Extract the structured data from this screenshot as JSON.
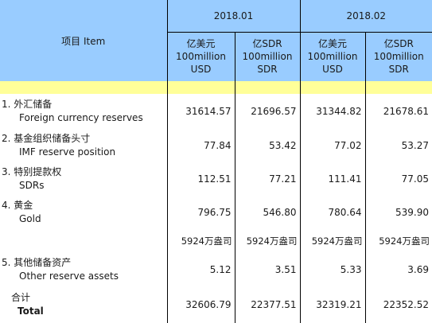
{
  "header": {
    "item_label": "项目  Item",
    "periods": [
      "2018.01",
      "2018.02"
    ],
    "units": [
      {
        "cn": "亿美元",
        "en": "100million",
        "cur": "USD"
      },
      {
        "cn": "亿SDR",
        "en": "100million",
        "cur": "SDR"
      },
      {
        "cn": "亿美元",
        "en": "100million",
        "cur": "USD"
      },
      {
        "cn": "亿SDR",
        "en": "100million",
        "cur": "SDR"
      }
    ]
  },
  "rows": [
    {
      "cn": "1.  外汇储备",
      "en": "Foreign currency reserves",
      "values": [
        "31614.57",
        "21696.57",
        "31344.82",
        "21678.61"
      ]
    },
    {
      "cn": "2.  基金组织储备头寸",
      "en": "IMF reserve position",
      "values": [
        "77.84",
        "53.42",
        "77.02",
        "53.27"
      ]
    },
    {
      "cn": "3.  特别提款权",
      "en": "SDRs",
      "values": [
        "112.51",
        "77.21",
        "111.41",
        "77.05"
      ]
    },
    {
      "cn": "4.  黄金",
      "en": "Gold",
      "values": [
        "796.75",
        "546.80",
        "780.64",
        "539.90"
      ]
    }
  ],
  "gold_ounces": [
    "5924万盎司",
    "5924万盎司",
    "5924万盎司",
    "5924万盎司"
  ],
  "other": {
    "cn": "5.  其他储备资产",
    "en": "Other reserve assets",
    "values": [
      "5.12",
      "3.51",
      "5.33",
      "3.69"
    ]
  },
  "total": {
    "cn": "合计",
    "en": "Total",
    "values": [
      "32606.79",
      "22377.51",
      "32319.21",
      "22352.52"
    ]
  }
}
